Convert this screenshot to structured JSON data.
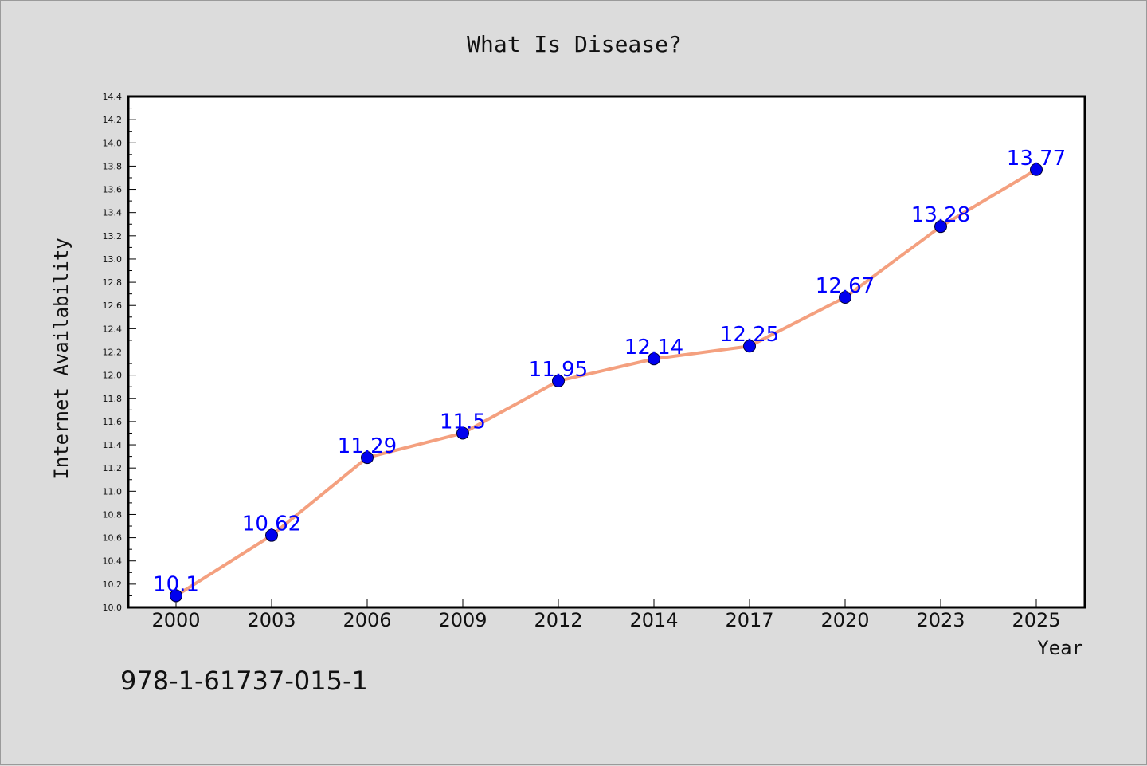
{
  "isbn_text": "978-1-61737-015-1",
  "chart_data": {
    "type": "line",
    "title": "What Is Disease?",
    "xlabel": "Year",
    "ylabel": "Internet Availability",
    "categories": [
      "2000",
      "2003",
      "2006",
      "2009",
      "2012",
      "2014",
      "2017",
      "2020",
      "2023",
      "2025"
    ],
    "series": [
      {
        "values": [
          10.1,
          10.62,
          11.29,
          11.5,
          11.95,
          12.14,
          12.25,
          12.67,
          13.28,
          13.77
        ],
        "line_color": "#f4a07f",
        "marker_color": "#0000ee"
      }
    ],
    "data_labels": [
      "10.1",
      "10.62",
      "11.29",
      "11.5",
      "11.95",
      "12.14",
      "12.25",
      "12.67",
      "13.28",
      "13.77"
    ],
    "ylim": [
      10.0,
      14.4
    ],
    "yticks": [
      "10.0",
      "10.2",
      "10.4",
      "10.6",
      "10.8",
      "11.0",
      "11.2",
      "11.4",
      "11.6",
      "11.8",
      "12.0",
      "12.2",
      "12.4",
      "12.6",
      "12.8",
      "13.0",
      "13.2",
      "13.4",
      "13.6",
      "13.8",
      "14.0",
      "14.2",
      "14.4"
    ],
    "grid": false,
    "legend": "none",
    "label_color": "#0000ff"
  }
}
